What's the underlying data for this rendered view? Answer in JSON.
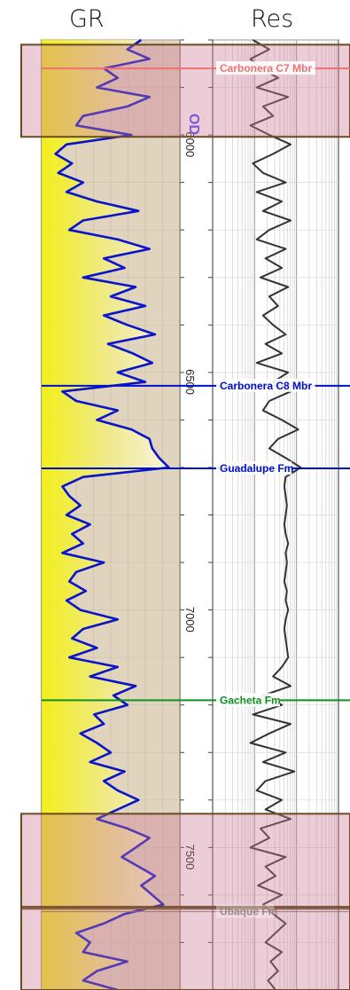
{
  "tracks": {
    "gr_title": "GR",
    "res_title": "Res"
  },
  "chart_data": {
    "type": "well-log",
    "depth_axis": {
      "min": 5780,
      "max": 7780,
      "ticks": [
        6000,
        6500,
        7000,
        7500
      ],
      "tick_labels": [
        "6000",
        "6500",
        "7000",
        "7500"
      ]
    },
    "formation_tops": [
      {
        "name": "Carbonera C7 Mbr",
        "depth": 5840,
        "color": "#f07070",
        "faded": false
      },
      {
        "name": "Carbonera C8 Mbr",
        "depth": 6508,
        "color": "#0010c8",
        "faded": false
      },
      {
        "name": "Guadalupe Fm",
        "depth": 6682,
        "color": "#0010c8",
        "faded": false
      },
      {
        "name": "Gacheta Fm",
        "depth": 7170,
        "color": "#109020",
        "faded": false
      },
      {
        "name": "Ubaque Fm",
        "depth": 7615,
        "color": "#8a7070",
        "faded": true
      }
    ],
    "zones": [
      {
        "top": 5790,
        "bottom": 5984
      },
      {
        "top": 7409,
        "bottom": 7609
      },
      {
        "top": 7605,
        "bottom": 7780
      }
    ],
    "curve_code": "OD",
    "gr": {
      "color": "#0a14c8",
      "highlight_color": "#8866dd",
      "fill_color": "#e8e620",
      "depths": [
        5780,
        5800,
        5820,
        5840,
        5860,
        5880,
        5900,
        5920,
        5940,
        5960,
        5980,
        6000,
        6020,
        6040,
        6060,
        6080,
        6100,
        6120,
        6140,
        6160,
        6180,
        6200,
        6220,
        6240,
        6260,
        6280,
        6300,
        6320,
        6340,
        6360,
        6380,
        6400,
        6420,
        6440,
        6460,
        6480,
        6500,
        6520,
        6540,
        6560,
        6580,
        6600,
        6620,
        6640,
        6660,
        6680,
        6700,
        6720,
        6740,
        6760,
        6780,
        6800,
        6820,
        6840,
        6860,
        6880,
        6900,
        6920,
        6940,
        6960,
        6980,
        7000,
        7020,
        7040,
        7060,
        7080,
        7100,
        7120,
        7140,
        7160,
        7180,
        7200,
        7220,
        7240,
        7260,
        7280,
        7300,
        7320,
        7340,
        7360,
        7380,
        7400,
        7420,
        7440,
        7460,
        7480,
        7500,
        7520,
        7540,
        7560,
        7580,
        7600,
        7620,
        7640,
        7660,
        7680,
        7700,
        7720,
        7740,
        7760,
        7780
      ],
      "values": [
        0.72,
        0.62,
        0.78,
        0.45,
        0.55,
        0.4,
        0.78,
        0.62,
        0.3,
        0.25,
        0.65,
        0.18,
        0.1,
        0.22,
        0.12,
        0.3,
        0.18,
        0.4,
        0.7,
        0.3,
        0.2,
        0.55,
        0.78,
        0.45,
        0.6,
        0.3,
        0.68,
        0.5,
        0.75,
        0.45,
        0.62,
        0.82,
        0.48,
        0.66,
        0.8,
        0.55,
        0.75,
        0.15,
        0.25,
        0.55,
        0.4,
        0.65,
        0.78,
        0.8,
        0.85,
        0.92,
        0.3,
        0.15,
        0.2,
        0.28,
        0.18,
        0.35,
        0.22,
        0.3,
        0.15,
        0.45,
        0.25,
        0.2,
        0.32,
        0.18,
        0.28,
        0.55,
        0.3,
        0.22,
        0.4,
        0.2,
        0.55,
        0.35,
        0.68,
        0.52,
        0.62,
        0.38,
        0.45,
        0.28,
        0.4,
        0.5,
        0.35,
        0.6,
        0.45,
        0.55,
        0.7,
        0.55,
        0.4,
        0.62,
        0.78,
        0.68,
        0.58,
        0.7,
        0.82,
        0.72,
        0.8,
        0.88,
        0.6,
        0.45,
        0.25,
        0.35,
        0.3,
        0.62,
        0.4,
        0.3,
        0.55
      ]
    },
    "res": {
      "color": "#333333",
      "depths": [
        5780,
        5800,
        5820,
        5840,
        5860,
        5880,
        5900,
        5920,
        5940,
        5960,
        5980,
        6000,
        6020,
        6040,
        6060,
        6080,
        6100,
        6120,
        6140,
        6160,
        6180,
        6200,
        6220,
        6240,
        6260,
        6280,
        6300,
        6320,
        6340,
        6360,
        6380,
        6400,
        6420,
        6440,
        6460,
        6480,
        6500,
        6520,
        6540,
        6560,
        6580,
        6600,
        6620,
        6640,
        6660,
        6680,
        6700,
        6720,
        6740,
        6760,
        6780,
        6800,
        6820,
        6840,
        6860,
        6880,
        6900,
        6920,
        6940,
        6960,
        6980,
        7000,
        7020,
        7040,
        7060,
        7080,
        7100,
        7120,
        7140,
        7160,
        7180,
        7200,
        7220,
        7240,
        7260,
        7280,
        7300,
        7320,
        7340,
        7360,
        7380,
        7400,
        7420,
        7440,
        7460,
        7480,
        7500,
        7520,
        7540,
        7560,
        7580,
        7600,
        7620,
        7640,
        7660,
        7680,
        7700,
        7720,
        7740,
        7760,
        7780
      ],
      "values": [
        0.32,
        0.45,
        0.3,
        0.38,
        0.52,
        0.35,
        0.6,
        0.4,
        0.48,
        0.3,
        0.45,
        0.62,
        0.48,
        0.32,
        0.4,
        0.58,
        0.35,
        0.55,
        0.4,
        0.62,
        0.45,
        0.35,
        0.58,
        0.42,
        0.55,
        0.38,
        0.6,
        0.45,
        0.52,
        0.4,
        0.48,
        0.58,
        0.42,
        0.55,
        0.35,
        0.6,
        0.48,
        0.62,
        0.45,
        0.4,
        0.55,
        0.68,
        0.52,
        0.45,
        0.58,
        0.7,
        0.58,
        0.57,
        0.58,
        0.59,
        0.58,
        0.57,
        0.58,
        0.6,
        0.58,
        0.59,
        0.58,
        0.57,
        0.59,
        0.58,
        0.6,
        0.58,
        0.57,
        0.58,
        0.59,
        0.6,
        0.55,
        0.48,
        0.62,
        0.4,
        0.55,
        0.32,
        0.62,
        0.45,
        0.3,
        0.58,
        0.4,
        0.65,
        0.42,
        0.35,
        0.55,
        0.42,
        0.62,
        0.38,
        0.45,
        0.3,
        0.58,
        0.42,
        0.5,
        0.36,
        0.55,
        0.4,
        0.48,
        0.58,
        0.5,
        0.42,
        0.55,
        0.46,
        0.52,
        0.44,
        0.5
      ]
    }
  }
}
